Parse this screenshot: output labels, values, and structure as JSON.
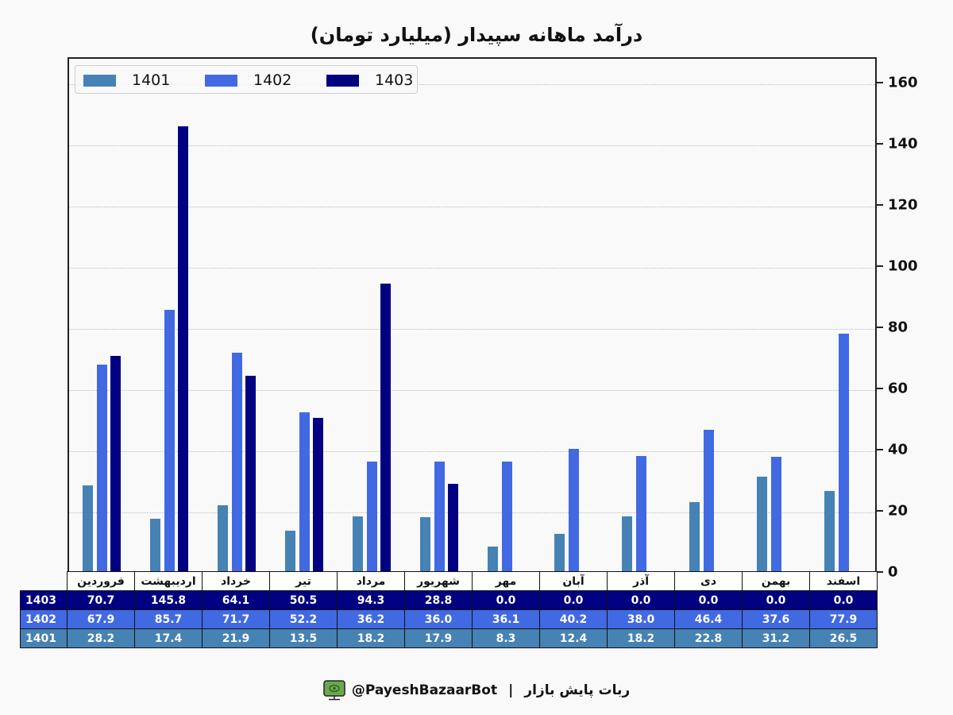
{
  "title": "درآمد ماهانه سپیدار (میلیارد تومان)",
  "chart_data": {
    "type": "bar",
    "title": "درآمد ماهانه سپیدار (میلیارد تومان)",
    "xlabel": "",
    "ylabel": "",
    "ylim": [
      0,
      168
    ],
    "yticks": [
      0,
      20,
      40,
      60,
      80,
      100,
      120,
      140,
      160
    ],
    "y_axis_position": "right",
    "grid": "horizontal dotted",
    "legend_position": "upper left",
    "categories": [
      "فروردین",
      "اردیبهشت",
      "خرداد",
      "تیر",
      "مرداد",
      "شهریور",
      "مهر",
      "آبان",
      "آذر",
      "دی",
      "بهمن",
      "اسفند"
    ],
    "series": [
      {
        "name": "1401",
        "color": "#4682b4",
        "values": [
          28.2,
          17.4,
          21.9,
          13.5,
          18.2,
          17.9,
          8.3,
          12.4,
          18.2,
          22.8,
          31.2,
          26.5
        ]
      },
      {
        "name": "1402",
        "color": "#4169e1",
        "values": [
          67.9,
          85.7,
          71.7,
          52.2,
          36.2,
          36.0,
          36.1,
          40.2,
          38.0,
          46.4,
          37.6,
          77.9
        ]
      },
      {
        "name": "1403",
        "color": "#000080",
        "values": [
          70.7,
          145.8,
          64.1,
          50.5,
          94.3,
          28.8,
          0.0,
          0.0,
          0.0,
          0.0,
          0.0,
          0.0
        ]
      }
    ]
  },
  "legend": [
    {
      "label": "1401",
      "color": "#4682b4"
    },
    {
      "label": "1402",
      "color": "#4169e1"
    },
    {
      "label": "1403",
      "color": "#000080"
    }
  ],
  "table": {
    "months": [
      "فروردین",
      "اردیبهشت",
      "خرداد",
      "تیر",
      "مرداد",
      "شهریور",
      "مهر",
      "آبان",
      "آذر",
      "دی",
      "بهمن",
      "اسفند"
    ],
    "rows": [
      {
        "label": "1403",
        "color": "#000080",
        "values": [
          "70.7",
          "145.8",
          "64.1",
          "50.5",
          "94.3",
          "28.8",
          "0.0",
          "0.0",
          "0.0",
          "0.0",
          "0.0",
          "0.0"
        ]
      },
      {
        "label": "1402",
        "color": "#4169e1",
        "values": [
          "67.9",
          "85.7",
          "71.7",
          "52.2",
          "36.2",
          "36.0",
          "36.1",
          "40.2",
          "38.0",
          "46.4",
          "37.6",
          "77.9"
        ]
      },
      {
        "label": "1401",
        "color": "#4682b4",
        "values": [
          "28.2",
          "17.4",
          "21.9",
          "13.5",
          "18.2",
          "17.9",
          "8.3",
          "12.4",
          "18.2",
          "22.8",
          "31.2",
          "26.5"
        ]
      }
    ]
  },
  "footer": {
    "handle": "@PayeshBazaarBot",
    "separator": "|",
    "bot_name": "ربات پایش بازار",
    "icon": "monitor-bot-icon",
    "icon_color": "#6aa84f"
  }
}
